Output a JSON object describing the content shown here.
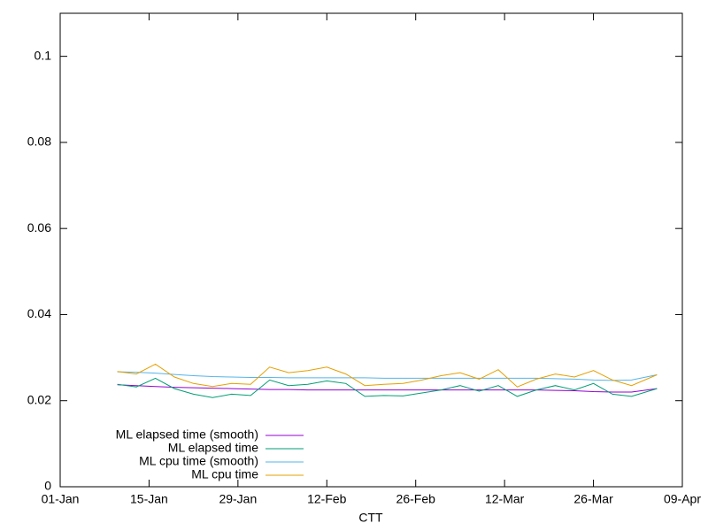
{
  "chart_data": {
    "type": "line",
    "xlabel": "CTT",
    "x": [
      9,
      12,
      15,
      18,
      21,
      24,
      27,
      30,
      33,
      36,
      39,
      42,
      45,
      48,
      51,
      54,
      57,
      60,
      63,
      66,
      69,
      72,
      75,
      78,
      81,
      84,
      87,
      90,
      94
    ],
    "series": [
      {
        "name": "ML elapsed time (smooth)",
        "color": "#9400d3",
        "values": [
          0.0237,
          0.0235,
          0.0233,
          0.0231,
          0.023,
          0.0229,
          0.0228,
          0.0227,
          0.0226,
          0.0226,
          0.0225,
          0.0225,
          0.0225,
          0.0225,
          0.0225,
          0.0225,
          0.0225,
          0.0225,
          0.0225,
          0.0225,
          0.0225,
          0.0225,
          0.0225,
          0.0224,
          0.0223,
          0.0221,
          0.022,
          0.022,
          0.0228
        ]
      },
      {
        "name": "ML elapsed time",
        "color": "#009e73",
        "values": [
          0.0238,
          0.0232,
          0.0252,
          0.0228,
          0.0215,
          0.0207,
          0.0215,
          0.0212,
          0.0248,
          0.0235,
          0.0238,
          0.0246,
          0.024,
          0.021,
          0.0212,
          0.0211,
          0.0218,
          0.0225,
          0.0235,
          0.0222,
          0.0235,
          0.021,
          0.0225,
          0.0235,
          0.0225,
          0.024,
          0.0215,
          0.021,
          0.0228
        ]
      },
      {
        "name": "ML cpu time (smooth)",
        "color": "#56b4e9",
        "values": [
          0.0267,
          0.0266,
          0.0264,
          0.0261,
          0.0258,
          0.0256,
          0.0255,
          0.0254,
          0.0254,
          0.0253,
          0.0253,
          0.0253,
          0.0253,
          0.0253,
          0.0252,
          0.0252,
          0.0252,
          0.0252,
          0.0252,
          0.0252,
          0.0252,
          0.0252,
          0.0252,
          0.0251,
          0.025,
          0.0248,
          0.0247,
          0.0248,
          0.026
        ]
      },
      {
        "name": "ML cpu time",
        "color": "#e69f00",
        "values": [
          0.0268,
          0.0262,
          0.0285,
          0.0255,
          0.024,
          0.0233,
          0.024,
          0.0238,
          0.0278,
          0.0265,
          0.027,
          0.0278,
          0.0262,
          0.0235,
          0.0238,
          0.024,
          0.0248,
          0.0258,
          0.0265,
          0.025,
          0.0272,
          0.0232,
          0.025,
          0.0262,
          0.0255,
          0.027,
          0.0248,
          0.0235,
          0.026
        ]
      }
    ],
    "xlim": [
      0,
      98
    ],
    "xticks": [
      {
        "value": 0,
        "label": "01-Jan"
      },
      {
        "value": 14,
        "label": "15-Jan"
      },
      {
        "value": 28,
        "label": "29-Jan"
      },
      {
        "value": 42,
        "label": "12-Feb"
      },
      {
        "value": 56,
        "label": "26-Feb"
      },
      {
        "value": 70,
        "label": "12-Mar"
      },
      {
        "value": 84,
        "label": "26-Mar"
      },
      {
        "value": 98,
        "label": "09-Apr"
      }
    ],
    "ylim": [
      0,
      0.11
    ],
    "yticks": [
      0,
      0.02,
      0.04,
      0.06,
      0.08,
      0.1
    ],
    "legend": "lower left",
    "grid": false
  }
}
